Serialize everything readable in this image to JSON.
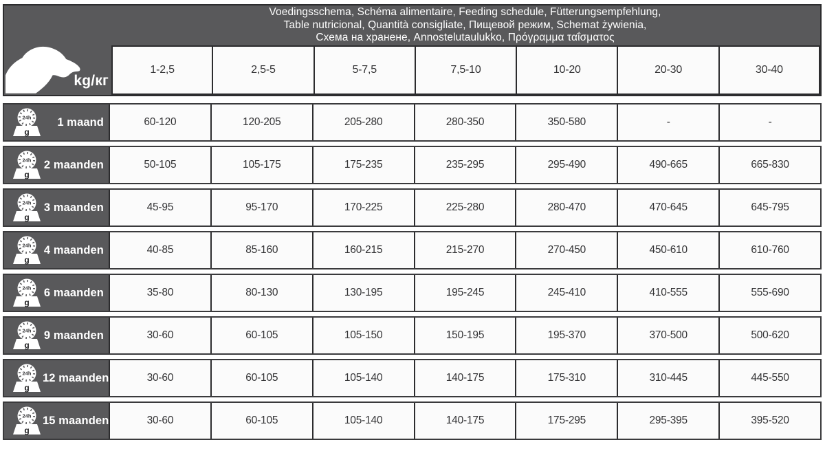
{
  "title_lines": [
    "Voedingsschema, Schéma alimentaire, Feeding schedule, Fütterungsempfehlung,",
    "Table nutricional, Quantità consigliate, Пищевой режим, Schemat żywienia,",
    "Схема на хранене, Annostelutaulukko, Πρόγραμμα ταΐσματος"
  ],
  "corner_label": "kg/кг",
  "weight_columns": [
    "1-2,5",
    "2,5-5",
    "5-7,5",
    "7,5-10",
    "10-20",
    "20-30",
    "30-40"
  ],
  "scale_icon": {
    "dial_text": "24h",
    "unit_text": "g"
  },
  "icon_names": {
    "corner": "dog-head-icon",
    "row": "kitchen-scale-icon"
  },
  "colors": {
    "header_bg": "#59595b",
    "cell_bg": "#fbfbfb",
    "border": "#2c2c2e",
    "text_light": "#ffffff",
    "text_dark": "#333335"
  },
  "rows": [
    {
      "label": "1 maand",
      "values": [
        "60-120",
        "120-205",
        "205-280",
        "280-350",
        "350-580",
        "-",
        "-"
      ]
    },
    {
      "label": "2 maanden",
      "values": [
        "50-105",
        "105-175",
        "175-235",
        "235-295",
        "295-490",
        "490-665",
        "665-830"
      ]
    },
    {
      "label": "3 maanden",
      "values": [
        "45-95",
        "95-170",
        "170-225",
        "225-280",
        "280-470",
        "470-645",
        "645-795"
      ]
    },
    {
      "label": "4 maanden",
      "values": [
        "40-85",
        "85-160",
        "160-215",
        "215-270",
        "270-450",
        "450-610",
        "610-760"
      ]
    },
    {
      "label": "6 maanden",
      "values": [
        "35-80",
        "80-130",
        "130-195",
        "195-245",
        "245-410",
        "410-555",
        "555-690"
      ]
    },
    {
      "label": "9 maanden",
      "values": [
        "30-60",
        "60-105",
        "105-150",
        "150-195",
        "195-370",
        "370-500",
        "500-620"
      ]
    },
    {
      "label": "12 maanden",
      "values": [
        "30-60",
        "60-105",
        "105-140",
        "140-175",
        "175-310",
        "310-445",
        "445-550"
      ]
    },
    {
      "label": "15 maanden",
      "values": [
        "30-60",
        "60-105",
        "105-140",
        "140-175",
        "175-295",
        "295-395",
        "395-520"
      ]
    }
  ]
}
